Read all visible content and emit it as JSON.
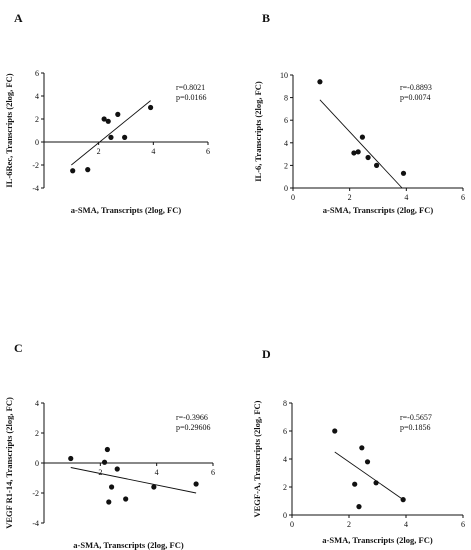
{
  "figure": {
    "colors": {
      "ink": "#111111",
      "background": "#ffffff"
    }
  },
  "chart_data": [
    {
      "panel": "A",
      "type": "scatter",
      "xlabel": "a-SMA, Transcripts (2log, FC)",
      "ylabel": "IL-6Rec, Transcripts (2log, FC)",
      "xlim": [
        0,
        6
      ],
      "ylim": [
        -4,
        6
      ],
      "xticks": [
        "2",
        "4",
        "6"
      ],
      "yticks": [
        "-4",
        "-2",
        "0",
        "2",
        "4",
        "6"
      ],
      "points": [
        [
          1.05,
          -2.5
        ],
        [
          1.6,
          -2.4
        ],
        [
          2.2,
          2.0
        ],
        [
          2.35,
          1.8
        ],
        [
          2.45,
          0.4
        ],
        [
          2.7,
          2.4
        ],
        [
          2.95,
          0.4
        ],
        [
          3.9,
          3.0
        ]
      ],
      "fit_line": [
        [
          1.0,
          -2.0
        ],
        [
          3.9,
          3.6
        ]
      ],
      "stats": [
        "r=0.8021",
        "p=0.0166"
      ]
    },
    {
      "panel": "B",
      "type": "scatter",
      "xlabel": "a-SMA, Transcripts (2log, FC)",
      "ylabel": "IL-6, Transcripts (2log, FC)",
      "xlim": [
        0,
        6
      ],
      "ylim": [
        0,
        10
      ],
      "xticks": [
        "0",
        "2",
        "4",
        "6"
      ],
      "yticks": [
        "0",
        "2",
        "4",
        "6",
        "8",
        "10"
      ],
      "points": [
        [
          0.95,
          9.4
        ],
        [
          2.15,
          3.1
        ],
        [
          2.3,
          3.2
        ],
        [
          2.45,
          4.5
        ],
        [
          2.65,
          2.7
        ],
        [
          2.95,
          2.0
        ],
        [
          3.9,
          1.3
        ]
      ],
      "fit_line": [
        [
          0.95,
          7.8
        ],
        [
          3.85,
          0.0
        ]
      ],
      "stats": [
        "r=-0.8893",
        "p=0.0074"
      ]
    },
    {
      "panel": "C",
      "type": "scatter",
      "xlabel": "a-SMA, Transcripts (2log, FC)",
      "ylabel": "VEGF R1-14, Transcripts (2log, FC)",
      "xlim": [
        0,
        6
      ],
      "ylim": [
        -4,
        4
      ],
      "xticks": [
        "2",
        "4",
        "6"
      ],
      "yticks": [
        "-4",
        "-2",
        "0",
        "2",
        "4"
      ],
      "points": [
        [
          0.95,
          0.3
        ],
        [
          2.15,
          0.05
        ],
        [
          2.25,
          0.9
        ],
        [
          2.3,
          -2.6
        ],
        [
          2.4,
          -1.6
        ],
        [
          2.6,
          -0.4
        ],
        [
          2.9,
          -2.4
        ],
        [
          3.9,
          -1.6
        ],
        [
          5.4,
          -1.4
        ]
      ],
      "fit_line": [
        [
          0.95,
          -0.3
        ],
        [
          5.4,
          -2.0
        ]
      ],
      "stats": [
        "r=-0.3966",
        "p=0.29606"
      ]
    },
    {
      "panel": "D",
      "type": "scatter",
      "xlabel": "a-SMA, Transcripts (2log, FC)",
      "ylabel": "VEGF-A, Transcripts (2log, FC)",
      "xlim": [
        0,
        6
      ],
      "ylim": [
        0,
        8
      ],
      "xticks": [
        "0",
        "2",
        "4",
        "6"
      ],
      "yticks": [
        "0",
        "2",
        "4",
        "6",
        "8"
      ],
      "points": [
        [
          1.5,
          6.0
        ],
        [
          2.2,
          2.2
        ],
        [
          2.35,
          0.6
        ],
        [
          2.45,
          4.8
        ],
        [
          2.65,
          3.8
        ],
        [
          2.95,
          2.3
        ],
        [
          3.9,
          1.1
        ]
      ],
      "fit_line": [
        [
          1.5,
          4.5
        ],
        [
          3.9,
          1.1
        ]
      ],
      "stats": [
        "r=-0.5657",
        "p=0.1856"
      ]
    }
  ]
}
